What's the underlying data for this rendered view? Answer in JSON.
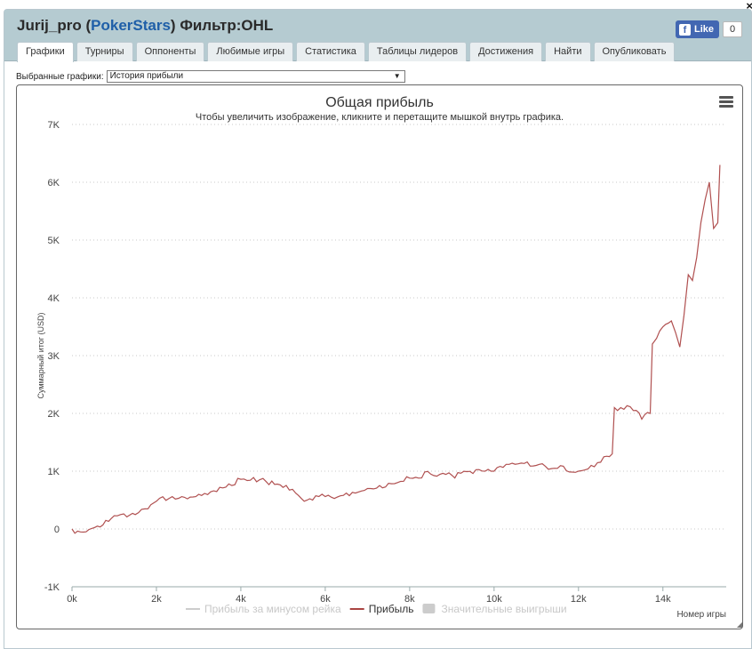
{
  "header": {
    "user": "Jurij_pro",
    "paren_open": " (",
    "site": "PokerStars",
    "paren_close": ")",
    "filter": " Фильтр:OHL",
    "close_symbol": "×"
  },
  "like": {
    "label": "Like",
    "count": "0",
    "fb_letter": "f"
  },
  "tabs": [
    {
      "label": "Графики",
      "active": true
    },
    {
      "label": "Турниры"
    },
    {
      "label": "Оппоненты"
    },
    {
      "label": "Любимые игры"
    },
    {
      "label": "Статистика"
    },
    {
      "label": "Таблицы лидеров"
    },
    {
      "label": "Достижения"
    },
    {
      "label": "Найти"
    },
    {
      "label": "Опубликовать"
    }
  ],
  "selector": {
    "label": "Выбранные графики:",
    "value": "История прибыли"
  },
  "chart_data": {
    "type": "line",
    "title": "Общая прибыль",
    "subtitle": "Чтобы увеличить изображение, кликните и перетащите мышкой внутрь графика.",
    "xlabel": "Номер игры",
    "ylabel": "Суммарный итог (USD)",
    "xlim": [
      0,
      15500
    ],
    "ylim": [
      -1000,
      7000
    ],
    "x_ticks": [
      0,
      2000,
      4000,
      6000,
      8000,
      10000,
      12000,
      14000
    ],
    "x_tick_labels": [
      "0k",
      "2k",
      "4k",
      "6k",
      "8k",
      "10k",
      "12k",
      "14k"
    ],
    "y_ticks": [
      -1000,
      0,
      1000,
      2000,
      3000,
      4000,
      5000,
      6000,
      7000
    ],
    "y_tick_labels": [
      "-1K",
      "0",
      "1K",
      "2K",
      "3K",
      "4K",
      "5K",
      "6K",
      "7K"
    ],
    "grid": true,
    "legend_placement": "bottom",
    "legend": [
      {
        "label": "Прибыль за минусом рейка",
        "color": "#cccccc",
        "kind": "line",
        "visible": false
      },
      {
        "label": "Прибыль",
        "color": "#a94442",
        "kind": "line",
        "visible": true
      },
      {
        "label": "Значительные выигрыши",
        "color": "#cccccc",
        "kind": "box",
        "visible": false
      }
    ],
    "series": [
      {
        "name": "Прибыль",
        "color": "#b05050",
        "x": [
          0,
          200,
          400,
          600,
          800,
          1000,
          1300,
          1500,
          1800,
          2000,
          2300,
          2600,
          3000,
          3500,
          4000,
          4300,
          4600,
          5000,
          5300,
          5500,
          5700,
          6000,
          6500,
          7000,
          7500,
          8000,
          8500,
          9000,
          9500,
          10000,
          10500,
          11000,
          11500,
          12000,
          12300,
          12600,
          12800,
          12850,
          13000,
          13300,
          13500,
          13700,
          13750,
          13850,
          14000,
          14200,
          14300,
          14400,
          14500,
          14600,
          14700,
          14800,
          14900,
          15000,
          15100,
          15200,
          15300,
          15350
        ],
        "y": [
          0,
          -50,
          -10,
          50,
          150,
          230,
          210,
          250,
          350,
          480,
          530,
          560,
          600,
          720,
          860,
          890,
          820,
          720,
          620,
          480,
          500,
          560,
          620,
          700,
          790,
          880,
          950,
          930,
          960,
          1000,
          1120,
          1100,
          1050,
          1000,
          1100,
          1250,
          1300,
          2100,
          2100,
          2050,
          1900,
          2000,
          3200,
          3300,
          3500,
          3600,
          3400,
          3150,
          3700,
          4400,
          4300,
          4700,
          5300,
          5700,
          6000,
          5200,
          5300,
          6300
        ]
      }
    ]
  }
}
